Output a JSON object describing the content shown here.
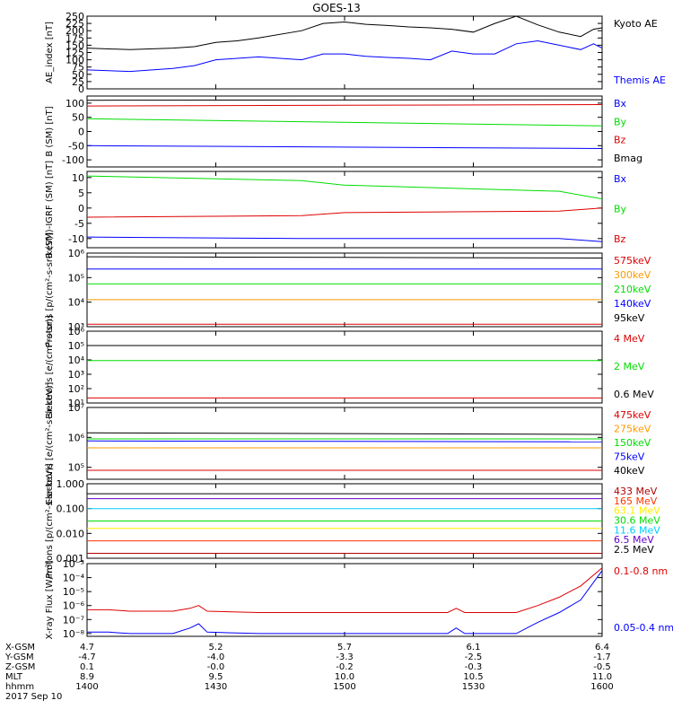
{
  "title": "GOES-13",
  "colors": {
    "black": "#000000",
    "blue": "#0000ff",
    "green": "#00dd00",
    "red": "#dd0000",
    "orange": "#ff9900",
    "yellow": "#ffee00",
    "cyan": "#00ccff",
    "purple": "#6600cc",
    "darkred": "#b20000"
  },
  "chart_data": [
    {
      "type": "line",
      "ylabel": "AE_index [nT]",
      "ylim": [
        0,
        250
      ],
      "yticks": [
        "0",
        "25",
        "50",
        "75",
        "100",
        "125",
        "150",
        "175",
        "200",
        "225",
        "250"
      ],
      "yscale": "linear",
      "legend": [
        "Kyoto AE",
        "Themis AE"
      ],
      "series": [
        {
          "name": "Kyoto AE",
          "color": "#000000",
          "x": [
            1400,
            1410,
            1420,
            1425,
            1430,
            1435,
            1440,
            1450,
            1455,
            1500,
            1505,
            1510,
            1515,
            1520,
            1525,
            1530,
            1535,
            1540,
            1545,
            1550,
            1555,
            1558,
            1600
          ],
          "y": [
            140,
            135,
            140,
            145,
            160,
            165,
            175,
            200,
            225,
            230,
            222,
            218,
            213,
            210,
            205,
            195,
            225,
            250,
            220,
            195,
            180,
            205,
            210
          ]
        },
        {
          "name": "Themis AE",
          "color": "#0000ff",
          "x": [
            1400,
            1410,
            1420,
            1425,
            1430,
            1435,
            1440,
            1450,
            1455,
            1500,
            1505,
            1510,
            1515,
            1520,
            1525,
            1530,
            1535,
            1540,
            1545,
            1550,
            1555,
            1558,
            1600
          ],
          "y": [
            65,
            60,
            70,
            80,
            100,
            105,
            110,
            100,
            120,
            120,
            112,
            108,
            105,
            100,
            130,
            120,
            120,
            155,
            165,
            150,
            135,
            155,
            140
          ]
        }
      ]
    },
    {
      "type": "line",
      "ylabel": "B (SM) [nT]",
      "ylim": [
        -125,
        125
      ],
      "yticks": [
        "-100",
        "-50",
        "0",
        "50",
        "100"
      ],
      "yscale": "linear",
      "legend": [
        "Bx",
        "By",
        "Bz",
        "Bmag"
      ],
      "series": [
        {
          "name": "Bx",
          "color": "#0000ff",
          "x": [
            1400,
            1600
          ],
          "y": [
            -50,
            -60
          ]
        },
        {
          "name": "By",
          "color": "#00dd00",
          "x": [
            1400,
            1600
          ],
          "y": [
            45,
            20
          ]
        },
        {
          "name": "Bz",
          "color": "#dd0000",
          "x": [
            1400,
            1600
          ],
          "y": [
            90,
            95
          ]
        },
        {
          "name": "Bmag",
          "color": "#000000",
          "x": [
            1400,
            1600
          ],
          "y": [
            110,
            112
          ]
        }
      ]
    },
    {
      "type": "line",
      "ylabel": "B (SM)-IGRF (SM) [nT]",
      "ylim": [
        -13,
        12
      ],
      "yticks": [
        "-10",
        "-5",
        "0",
        "5",
        "10"
      ],
      "yscale": "linear",
      "legend": [
        "Bx",
        "By",
        "Bz"
      ],
      "series": [
        {
          "name": "Bx",
          "color": "#0000ff",
          "x": [
            1400,
            1450,
            1500,
            1550,
            1600
          ],
          "y": [
            -9.5,
            -10,
            -10,
            -10,
            -11
          ]
        },
        {
          "name": "By",
          "color": "#00dd00",
          "x": [
            1400,
            1450,
            1500,
            1550,
            1600
          ],
          "y": [
            10.5,
            9,
            7.5,
            5.5,
            3
          ]
        },
        {
          "name": "Bz",
          "color": "#dd0000",
          "x": [
            1400,
            1450,
            1500,
            1550,
            1600
          ],
          "y": [
            -3,
            -2.5,
            -1.5,
            -1,
            0
          ]
        }
      ]
    },
    {
      "type": "line",
      "ylabel": "Protons [p/(cm²-s-sr-keV)]",
      "ylim": [
        3,
        6
      ],
      "ylim_note": "log10",
      "yticks": [
        "10³",
        "10⁴",
        "10⁵",
        "10⁶"
      ],
      "yscale": "log",
      "legend": [
        "575keV",
        "300keV",
        "210keV",
        "140keV",
        "95keV"
      ],
      "series": [
        {
          "name": "575keV",
          "color": "#dd0000",
          "x": [
            1400,
            1600
          ],
          "y": [
            3.1,
            3.1
          ]
        },
        {
          "name": "300keV",
          "color": "#ff9900",
          "x": [
            1400,
            1600
          ],
          "y": [
            4.1,
            4.1
          ]
        },
        {
          "name": "210keV",
          "color": "#00dd00",
          "x": [
            1400,
            1600
          ],
          "y": [
            4.75,
            4.75
          ]
        },
        {
          "name": "140keV",
          "color": "#0000ff",
          "x": [
            1400,
            1600
          ],
          "y": [
            5.35,
            5.35
          ]
        },
        {
          "name": "95keV",
          "color": "#000000",
          "x": [
            1400,
            1600
          ],
          "y": [
            5.85,
            5.8
          ]
        }
      ]
    },
    {
      "type": "line",
      "ylabel": "Electrons [e/(cm²-s-sr)]",
      "ylim": [
        1,
        6
      ],
      "yticks": [
        "10¹",
        "10²",
        "10³",
        "10⁴",
        "10⁵",
        "10⁶"
      ],
      "yscale": "log",
      "legend": [
        "4 MeV",
        "2 MeV",
        "0.6 MeV"
      ],
      "series": [
        {
          "name": "4 MeV",
          "color": "#dd0000",
          "x": [
            1400,
            1600
          ],
          "y": [
            1.35,
            1.35
          ]
        },
        {
          "name": "2 MeV",
          "color": "#00dd00",
          "x": [
            1400,
            1600
          ],
          "y": [
            3.95,
            3.95
          ]
        },
        {
          "name": "0.6 MeV",
          "color": "#000000",
          "x": [
            1400,
            1600
          ],
          "y": [
            5.0,
            5.0
          ]
        }
      ]
    },
    {
      "type": "line",
      "ylabel": "Electrons [e/(cm²-s-sr-keV)]",
      "ylim": [
        4.6,
        7
      ],
      "yticks": [
        "10⁵",
        "10⁶",
        "10⁷"
      ],
      "yscale": "log",
      "legend": [
        "475keV",
        "275keV",
        "150keV",
        "75keV",
        "40keV"
      ],
      "series": [
        {
          "name": "475keV",
          "color": "#dd0000",
          "x": [
            1400,
            1600
          ],
          "y": [
            4.9,
            4.9
          ]
        },
        {
          "name": "275keV",
          "color": "#ff9900",
          "x": [
            1400,
            1600
          ],
          "y": [
            5.65,
            5.65
          ]
        },
        {
          "name": "150keV",
          "color": "#00dd00",
          "x": [
            1400,
            1600
          ],
          "y": [
            5.95,
            5.95
          ]
        },
        {
          "name": "75keV",
          "color": "#0000ff",
          "x": [
            1400,
            1600
          ],
          "y": [
            5.88,
            5.85
          ]
        },
        {
          "name": "40keV",
          "color": "#000000",
          "x": [
            1400,
            1600
          ],
          "y": [
            6.15,
            6.1
          ]
        }
      ]
    },
    {
      "type": "line",
      "ylabel": "Protons [p/(cm²-s-sr-keV)]",
      "ylim": [
        -3,
        0
      ],
      "yticks": [
        "0.001",
        "0.010",
        "0.100",
        "1.000"
      ],
      "yscale": "log",
      "legend": [
        "433 MeV",
        "165 MeV",
        "63.1 MeV",
        "30.6 MeV",
        "11.6 MeV",
        "6.5 MeV",
        "2.5 MeV"
      ],
      "series": [
        {
          "name": "433 MeV",
          "color": "#b20000",
          "x": [
            1400,
            1600
          ],
          "y": [
            -2.8,
            -2.8
          ]
        },
        {
          "name": "165 MeV",
          "color": "#ff3300",
          "x": [
            1400,
            1600
          ],
          "y": [
            -2.3,
            -2.3
          ]
        },
        {
          "name": "63.1 MeV",
          "color": "#ffee00",
          "x": [
            1400,
            1600
          ],
          "y": [
            -1.8,
            -1.8
          ]
        },
        {
          "name": "30.6 MeV",
          "color": "#00dd00",
          "x": [
            1400,
            1600
          ],
          "y": [
            -1.5,
            -1.5
          ]
        },
        {
          "name": "11.6 MeV",
          "color": "#00ccff",
          "x": [
            1400,
            1600
          ],
          "y": [
            -1.0,
            -1.0
          ]
        },
        {
          "name": "6.5 MeV",
          "color": "#6600cc",
          "x": [
            1400,
            1600
          ],
          "y": [
            -0.6,
            -0.6
          ]
        },
        {
          "name": "2.5 MeV",
          "color": "#000000",
          "x": [
            1400,
            1600
          ],
          "y": [
            -0.4,
            -0.4
          ]
        }
      ]
    },
    {
      "type": "line",
      "ylabel": "X-ray Flux [W/m²]",
      "ylim": [
        -8.2,
        -3
      ],
      "yticks": [
        "10⁻⁸",
        "10⁻⁷",
        "10⁻⁶",
        "10⁻⁵",
        "10⁻⁴",
        "10⁻³"
      ],
      "yscale": "log",
      "legend": [
        "0.1-0.8 nm",
        "0.05-0.4 nm"
      ],
      "series": [
        {
          "name": "0.1-0.8 nm",
          "color": "#dd0000",
          "x": [
            1400,
            1405,
            1410,
            1420,
            1424,
            1426,
            1428,
            1440,
            1450,
            1500,
            1510,
            1524,
            1526,
            1528,
            1540,
            1545,
            1550,
            1555,
            1600
          ],
          "y": [
            -6.3,
            -6.3,
            -6.4,
            -6.4,
            -6.2,
            -6.0,
            -6.4,
            -6.5,
            -6.5,
            -6.5,
            -6.5,
            -6.5,
            -6.2,
            -6.5,
            -6.5,
            -6.0,
            -5.4,
            -4.6,
            -3.3
          ]
        },
        {
          "name": "0.05-0.4 nm",
          "color": "#0000ff",
          "x": [
            1400,
            1405,
            1410,
            1420,
            1424,
            1426,
            1428,
            1440,
            1450,
            1500,
            1510,
            1524,
            1526,
            1528,
            1540,
            1545,
            1550,
            1555,
            1600
          ],
          "y": [
            -7.9,
            -7.9,
            -8.0,
            -8.0,
            -7.6,
            -7.3,
            -7.9,
            -8.0,
            -8.0,
            -8.0,
            -8.0,
            -8.0,
            -7.6,
            -8.0,
            -8.0,
            -7.2,
            -6.5,
            -5.6,
            -3.5
          ]
        }
      ]
    }
  ],
  "xaxis": {
    "row_labels": [
      "X-GSM",
      "Y-GSM",
      "Z-GSM",
      "MLT",
      "hhmm",
      "2017 Sep 10"
    ],
    "ticks": [
      {
        "x": 1400,
        "xgsm": "4.7",
        "ygsm": "-4.7",
        "zgsm": "0.1",
        "mlt": "8.9",
        "hhmm": "1400"
      },
      {
        "x": 1430,
        "xgsm": "5.2",
        "ygsm": "-4.0",
        "zgsm": "-0.0",
        "mlt": "9.5",
        "hhmm": "1430"
      },
      {
        "x": 1500,
        "xgsm": "5.7",
        "ygsm": "-3.3",
        "zgsm": "-0.2",
        "mlt": "10.0",
        "hhmm": "1500"
      },
      {
        "x": 1530,
        "xgsm": "6.1",
        "ygsm": "-2.5",
        "zgsm": "-0.3",
        "mlt": "10.5",
        "hhmm": "1530"
      },
      {
        "x": 1600,
        "xgsm": "6.4",
        "ygsm": "-1.7",
        "zgsm": "-0.5",
        "mlt": "11.0",
        "hhmm": "1600"
      }
    ]
  }
}
